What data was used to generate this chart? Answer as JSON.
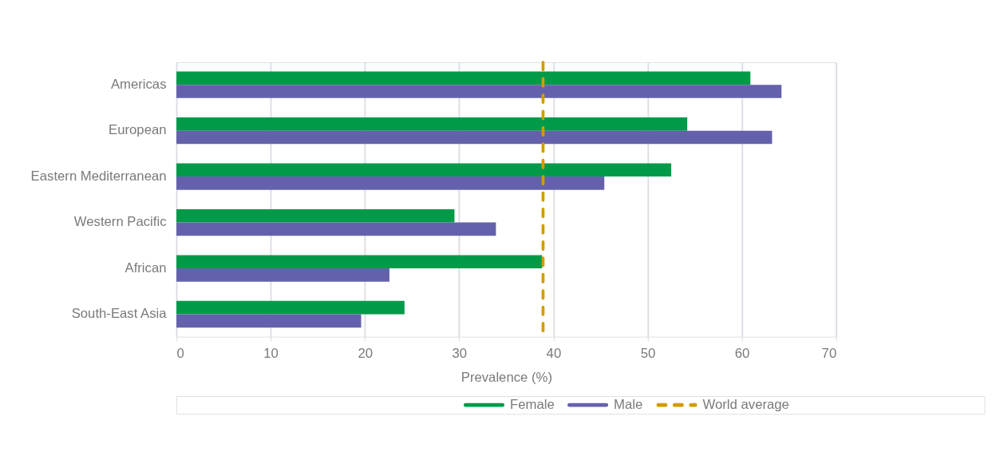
{
  "chart_data": {
    "type": "bar",
    "orientation": "horizontal",
    "xlabel": "Prevalence (%)",
    "categories": [
      "Americas",
      "European",
      "Eastern Mediterranean",
      "Western Pacific",
      "African",
      "South-East Asia"
    ],
    "series": [
      {
        "name": "Female",
        "color": "#009a49",
        "values": [
          60.9,
          54.2,
          52.5,
          29.5,
          38.8,
          24.2
        ]
      },
      {
        "name": "Male",
        "color": "#6461ac",
        "values": [
          64.2,
          63.2,
          45.4,
          33.9,
          22.6,
          19.6
        ]
      }
    ],
    "ref_lines": [
      {
        "axis": "x",
        "value": 38.9,
        "label": "World average",
        "color": "#d39b00",
        "line_style": "dashed"
      }
    ],
    "xlim": [
      0,
      70
    ],
    "xticks": [
      0,
      10,
      20,
      30,
      40,
      50,
      60,
      70
    ],
    "grid": "x",
    "legend": "bottom"
  }
}
